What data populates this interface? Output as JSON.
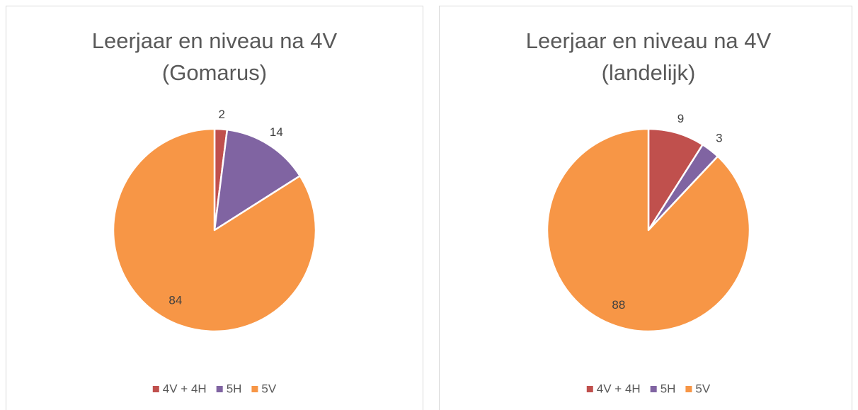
{
  "chart_data": [
    {
      "type": "pie",
      "title": "Leerjaar en niveau na 4V",
      "subtitle": "(Gomarus)",
      "categories": [
        "4V + 4H",
        "5H",
        "5V"
      ],
      "values": [
        2,
        14,
        84
      ],
      "colors": [
        "#c0504d",
        "#8064a2",
        "#f79646"
      ],
      "legend": "bottom"
    },
    {
      "type": "pie",
      "title": "Leerjaar en niveau na 4V",
      "subtitle": "(landelijk)",
      "categories": [
        "4V + 4H",
        "5H",
        "5V"
      ],
      "values": [
        9,
        3,
        88
      ],
      "colors": [
        "#c0504d",
        "#8064a2",
        "#f79646"
      ],
      "legend": "bottom"
    }
  ]
}
